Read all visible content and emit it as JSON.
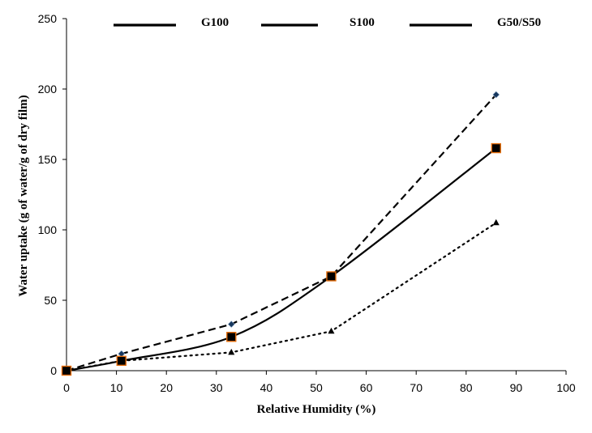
{
  "chart_data": {
    "type": "line",
    "xlabel": "Relative Humidity (%)",
    "ylabel": "Water uptake (g of water/g of dry film)",
    "xlim": [
      0,
      100
    ],
    "ylim": [
      0,
      250
    ],
    "xticks": [
      "0",
      "10",
      "20",
      "30",
      "40",
      "50",
      "60",
      "70",
      "80",
      "90",
      "100"
    ],
    "yticks": [
      "0",
      "50",
      "100",
      "150",
      "200",
      "250"
    ],
    "legend_position": "top",
    "grid": false,
    "series": [
      {
        "name": "G100",
        "line_style": "dashed",
        "marker": "diamond",
        "color": "#000000",
        "marker_color": "#17375E",
        "x": [
          0,
          11,
          33,
          53,
          86
        ],
        "y": [
          0,
          12,
          33,
          67,
          196
        ]
      },
      {
        "name": "S100",
        "line_style": "solid",
        "marker": "square",
        "color": "#000000",
        "marker_color": "#000000",
        "marker_edge": "#E46C0A",
        "x": [
          0,
          11,
          33,
          53,
          86
        ],
        "y": [
          0,
          7,
          24,
          67,
          158
        ]
      },
      {
        "name": "G50/S50",
        "line_style": "dotted",
        "marker": "triangle",
        "color": "#000000",
        "marker_color": "#000000",
        "x": [
          0,
          11,
          33,
          53,
          86
        ],
        "y": [
          0,
          7,
          13,
          28,
          105
        ]
      }
    ]
  }
}
